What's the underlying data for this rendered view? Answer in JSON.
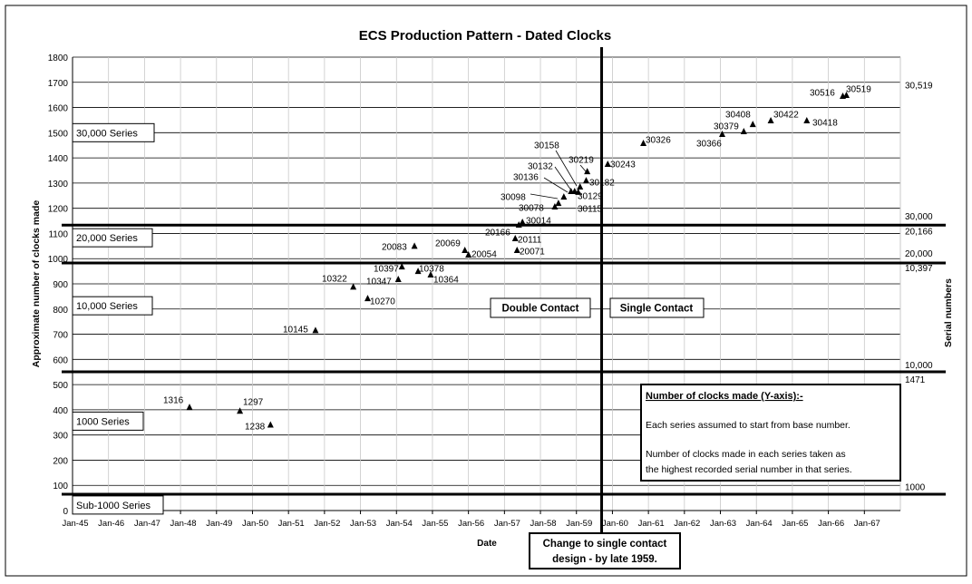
{
  "chart_data": {
    "type": "scatter",
    "title": "ECS Production Pattern - Dated Clocks",
    "xlabel": "Date",
    "ylabel": "Approximate number of clocks made",
    "y2label": "Serial numbers",
    "xlim": [
      "Jan-45",
      "Jan-68"
    ],
    "ylim": [
      0,
      1800
    ],
    "y_ticks": [
      0,
      100,
      200,
      300,
      400,
      500,
      600,
      700,
      800,
      900,
      1000,
      1100,
      1200,
      1300,
      1400,
      1500,
      1600,
      1700,
      1800
    ],
    "x_ticks": [
      "Jan-45",
      "Jan-46",
      "Jan-47",
      "Jan-48",
      "Jan-49",
      "Jan-50",
      "Jan-51",
      "Jan-52",
      "Jan-53",
      "Jan-54",
      "Jan-55",
      "Jan-56",
      "Jan-57",
      "Jan-58",
      "Jan-59",
      "Jan-60",
      "Jan-61",
      "Jan-62",
      "Jan-63",
      "Jan-64",
      "Jan-65",
      "Jan-66",
      "Jan-67"
    ],
    "grid": true,
    "marker": "triangle",
    "points": [
      {
        "label": "1316",
        "x": 1948.25,
        "y": 410
      },
      {
        "label": "1297",
        "x": 1949.65,
        "y": 395
      },
      {
        "label": "1238",
        "x": 1950.5,
        "y": 340
      },
      {
        "label": "10145",
        "x": 1951.75,
        "y": 715
      },
      {
        "label": "10322",
        "x": 1952.8,
        "y": 888
      },
      {
        "label": "10270",
        "x": 1953.2,
        "y": 842
      },
      {
        "label": "10347",
        "x": 1954.05,
        "y": 918
      },
      {
        "label": "10397",
        "x": 1954.15,
        "y": 968
      },
      {
        "label": "10378",
        "x": 1954.6,
        "y": 950
      },
      {
        "label": "10364",
        "x": 1954.95,
        "y": 936
      },
      {
        "label": "20083",
        "x": 1954.5,
        "y": 1050
      },
      {
        "label": "20069",
        "x": 1955.9,
        "y": 1033
      },
      {
        "label": "20054",
        "x": 1956.0,
        "y": 1015
      },
      {
        "label": "20166",
        "x": 1957.4,
        "y": 1134
      },
      {
        "label": "30014",
        "x": 1957.5,
        "y": 1145
      },
      {
        "label": "20111",
        "x": 1957.3,
        "y": 1080
      },
      {
        "label": "20071",
        "x": 1957.35,
        "y": 1033
      },
      {
        "label": "30078",
        "x": 1958.4,
        "y": 1206
      },
      {
        "label": "30115",
        "x": 1958.5,
        "y": 1220
      },
      {
        "label": "30098",
        "x": 1958.65,
        "y": 1245
      },
      {
        "label": "30136",
        "x": 1958.85,
        "y": 1267
      },
      {
        "label": "30132",
        "x": 1958.95,
        "y": 1267
      },
      {
        "label": "30129",
        "x": 1959.05,
        "y": 1264
      },
      {
        "label": "30158",
        "x": 1959.1,
        "y": 1285
      },
      {
        "label": "30182",
        "x": 1959.27,
        "y": 1310
      },
      {
        "label": "30219",
        "x": 1959.3,
        "y": 1346
      },
      {
        "label": "30243",
        "x": 1959.87,
        "y": 1375
      },
      {
        "label": "30326",
        "x": 1960.86,
        "y": 1458
      },
      {
        "label": "30366",
        "x": 1963.05,
        "y": 1494
      },
      {
        "label": "30379",
        "x": 1963.65,
        "y": 1505
      },
      {
        "label": "30408",
        "x": 1963.9,
        "y": 1533
      },
      {
        "label": "30422",
        "x": 1964.4,
        "y": 1548
      },
      {
        "label": "30418",
        "x": 1965.4,
        "y": 1548
      },
      {
        "label": "30516",
        "x": 1966.4,
        "y": 1645
      },
      {
        "label": "30519",
        "x": 1966.5,
        "y": 1649
      }
    ],
    "reference_lines": {
      "horizontal": [
        1133,
        983,
        551,
        65
      ],
      "vertical_date": 1959.7
    },
    "series_boxes": [
      "30,000 Series",
      "20,000 Series",
      "10,000 Series",
      "1000 Series",
      "Sub-1000 Series"
    ],
    "right_labels": [
      {
        "text": "30,519",
        "y": 1690
      },
      {
        "text": "30,000",
        "y": 1170
      },
      {
        "text": "20,166",
        "y": 1110
      },
      {
        "text": "20,000",
        "y": 1023
      },
      {
        "text": "10,397",
        "y": 965
      },
      {
        "text": "10,000",
        "y": 580
      },
      {
        "text": "1471",
        "y": 522
      },
      {
        "text": "1000",
        "y": 95
      }
    ],
    "annotations": {
      "double_contact": "Double Contact",
      "single_contact": "Single Contact",
      "note_title": "Number of clocks made (Y-axis):-",
      "note_line1": "Each series assumed to start from base number.",
      "note_line2": "Number of clocks made in each series taken as",
      "note_line3": "the highest recorded serial number in that series.",
      "change_line1": "Change to single contact",
      "change_line2": "design - by late 1959."
    }
  }
}
